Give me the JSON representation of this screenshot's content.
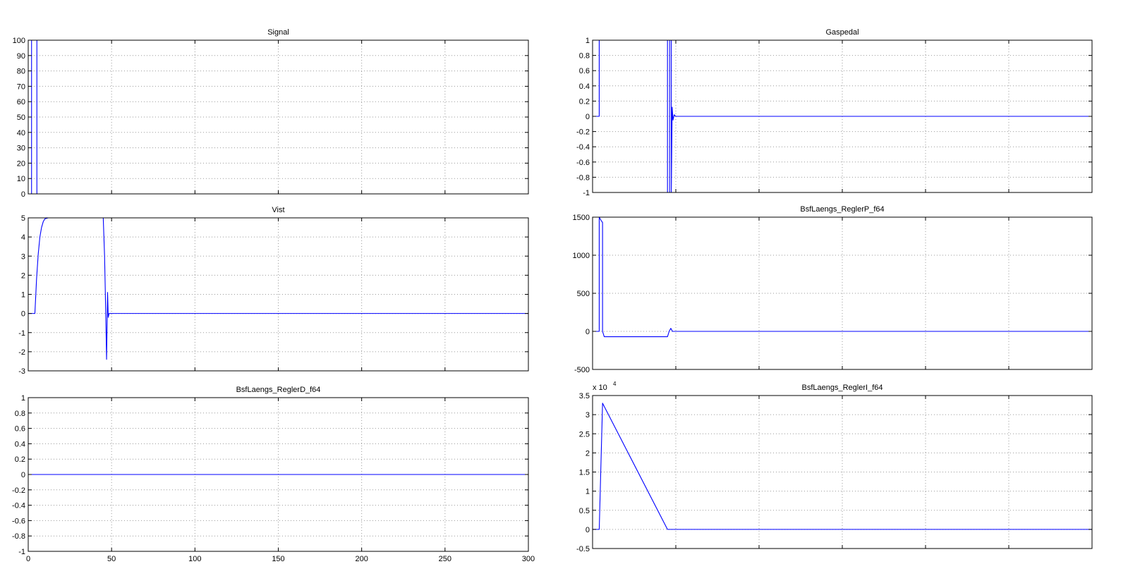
{
  "chart_data": [
    {
      "type": "line",
      "title": "Signal",
      "xlim": [
        0,
        300
      ],
      "ylim": [
        0,
        100
      ],
      "xticks": [
        0,
        50,
        100,
        150,
        200,
        250,
        300
      ],
      "xtick_labels": [
        "",
        "",
        "",
        "",
        "",
        "",
        ""
      ],
      "yticks": [
        0,
        10,
        20,
        30,
        40,
        50,
        60,
        70,
        80,
        90,
        100
      ],
      "ytick_labels": [
        "0",
        "10",
        "20",
        "30",
        "40",
        "50",
        "60",
        "70",
        "80",
        "90",
        "100"
      ],
      "grid": true,
      "color": "#0000ff",
      "series": [
        {
          "x": [
            0,
            2,
            2,
            5.2,
            5.2,
            300
          ],
          "y": [
            0,
            0,
            100,
            100,
            0,
            0
          ]
        }
      ]
    },
    {
      "type": "line",
      "title": "Gaspedal",
      "xlim": [
        0,
        300
      ],
      "ylim": [
        -1,
        1
      ],
      "xticks": [
        0,
        50,
        100,
        150,
        200,
        250,
        300
      ],
      "xtick_labels": [
        "",
        "",
        "",
        "",
        "",
        "",
        ""
      ],
      "yticks": [
        -1,
        -0.8,
        -0.6,
        -0.4,
        -0.2,
        0,
        0.2,
        0.4,
        0.6,
        0.8,
        1
      ],
      "ytick_labels": [
        "-1",
        "-0.8",
        "-0.6",
        "-0.4",
        "-0.2",
        "0",
        "0.2",
        "0.4",
        "0.6",
        "0.8",
        "1"
      ],
      "grid": true,
      "color": "#0000ff",
      "series": [
        {
          "x": [
            0,
            4,
            4,
            45,
            45,
            46.3,
            46.3,
            47.3,
            47.3,
            47.8,
            48.3,
            49,
            50,
            300
          ],
          "y": [
            0,
            0,
            1,
            1,
            -1,
            -1,
            1,
            1,
            -1,
            0.12,
            -0.05,
            0.02,
            0,
            0
          ]
        }
      ]
    },
    {
      "type": "line",
      "title": "Vist",
      "xlim": [
        0,
        300
      ],
      "ylim": [
        -3,
        5
      ],
      "xticks": [
        0,
        50,
        100,
        150,
        200,
        250,
        300
      ],
      "xtick_labels": [
        "",
        "",
        "",
        "",
        "",
        "",
        ""
      ],
      "yticks": [
        -3,
        -2,
        -1,
        0,
        1,
        2,
        3,
        4,
        5
      ],
      "ytick_labels": [
        "-3",
        "-2",
        "-1",
        "0",
        "1",
        "2",
        "3",
        "4",
        "5"
      ],
      "grid": true,
      "color": "#0000ff",
      "series": [
        {
          "x": [
            0,
            4,
            5,
            6,
            7,
            8,
            9,
            10,
            12,
            14,
            45,
            45.8,
            46.5,
            47,
            47.6,
            48,
            48.5,
            300
          ],
          "y": [
            0,
            0,
            1.8,
            3.1,
            4.0,
            4.5,
            4.8,
            4.95,
            5,
            5,
            5,
            3,
            0,
            -2.4,
            1.1,
            -0.2,
            0,
            0
          ]
        }
      ]
    },
    {
      "type": "line",
      "title": "BsfLaengs_ReglerP_f64",
      "xlim": [
        0,
        300
      ],
      "ylim": [
        -500,
        1500
      ],
      "xticks": [
        0,
        50,
        100,
        150,
        200,
        250,
        300
      ],
      "xtick_labels": [
        "",
        "",
        "",
        "",
        "",
        "",
        ""
      ],
      "yticks": [
        -500,
        0,
        500,
        1000,
        1500
      ],
      "ytick_labels": [
        "-500",
        "0",
        "500",
        "1000",
        "1500"
      ],
      "grid": true,
      "color": "#0000ff",
      "series": [
        {
          "x": [
            0,
            4,
            4,
            5,
            6,
            6,
            7,
            45,
            46,
            47,
            48,
            300
          ],
          "y": [
            0,
            0,
            1500,
            1460,
            1430,
            0,
            -70,
            -70,
            0,
            40,
            0,
            0
          ]
        }
      ]
    },
    {
      "type": "line",
      "title": "BsfLaengs_ReglerD_f64",
      "xlim": [
        0,
        300
      ],
      "ylim": [
        -1,
        1
      ],
      "xticks": [
        0,
        50,
        100,
        150,
        200,
        250,
        300
      ],
      "xtick_labels": [
        "0",
        "50",
        "100",
        "150",
        "200",
        "250",
        "300"
      ],
      "yticks": [
        -1,
        -0.8,
        -0.6,
        -0.4,
        -0.2,
        0,
        0.2,
        0.4,
        0.6,
        0.8,
        1
      ],
      "ytick_labels": [
        "-1",
        "-0.8",
        "-0.6",
        "-0.4",
        "-0.2",
        "0",
        "0.2",
        "0.4",
        "0.6",
        "0.8",
        "1"
      ],
      "grid": true,
      "color": "#0000ff",
      "series": [
        {
          "x": [
            0,
            300
          ],
          "y": [
            0,
            0
          ]
        }
      ]
    },
    {
      "type": "line",
      "title": "BsfLaengs_ReglerI_f64",
      "xlim": [
        0,
        300
      ],
      "ylim": [
        -0.5,
        3.5
      ],
      "xticks": [
        0,
        50,
        100,
        150,
        200,
        250,
        300
      ],
      "xtick_labels": [
        "",
        "",
        "",
        "",
        "",
        "",
        ""
      ],
      "yticks": [
        -0.5,
        0,
        0.5,
        1,
        1.5,
        2,
        2.5,
        3,
        3.5
      ],
      "ytick_labels": [
        "-0.5",
        "0",
        "0.5",
        "1",
        "1.5",
        "2",
        "2.5",
        "3",
        "3.5"
      ],
      "exponent_label": "x 10",
      "exponent": "4",
      "grid": true,
      "color": "#0000ff",
      "series": [
        {
          "x": [
            0,
            4,
            6,
            45,
            46,
            300
          ],
          "y": [
            0,
            0,
            3.3,
            0,
            0,
            0
          ]
        }
      ]
    }
  ]
}
